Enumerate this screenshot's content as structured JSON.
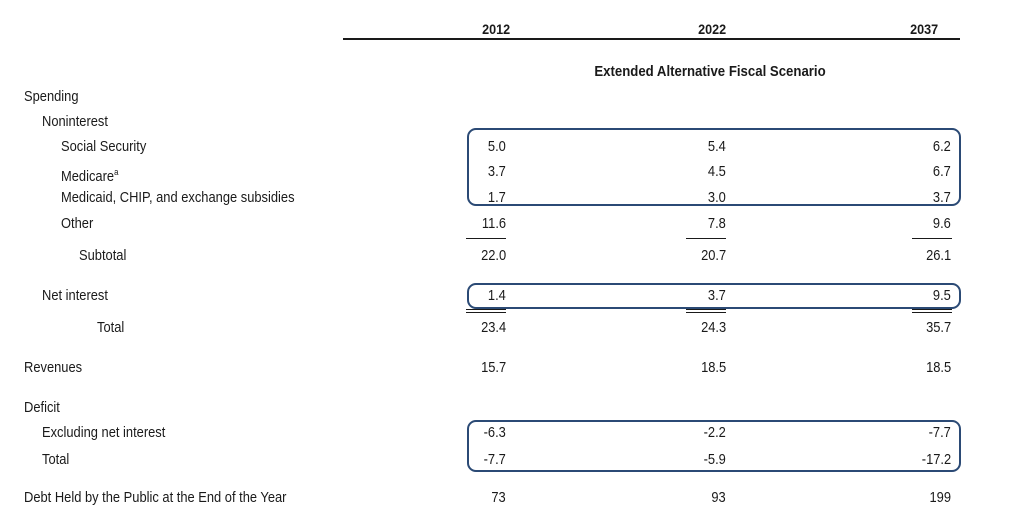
{
  "years": [
    "2012",
    "2022",
    "2037"
  ],
  "scenario_title": "Extended Alternative Fiscal Scenario",
  "rows": {
    "spending": {
      "label": "Spending"
    },
    "noninterest": {
      "label": "Noninterest"
    },
    "social_security": {
      "label": "Social Security",
      "values": [
        "5.0",
        "5.4",
        "6.2"
      ]
    },
    "medicare": {
      "label": "Medicare",
      "superscript": "a",
      "values": [
        "3.7",
        "4.5",
        "6.7"
      ]
    },
    "medicaid": {
      "label": "Medicaid, CHIP, and exchange subsidies",
      "values": [
        "1.7",
        "3.0",
        "3.7"
      ]
    },
    "other": {
      "label": "Other",
      "values": [
        "11.6",
        "7.8",
        "9.6"
      ]
    },
    "subtotal": {
      "label": "Subtotal",
      "values": [
        "22.0",
        "20.7",
        "26.1"
      ]
    },
    "net_interest": {
      "label": "Net interest",
      "values": [
        "1.4",
        "3.7",
        "9.5"
      ]
    },
    "total_spending": {
      "label": "Total",
      "values": [
        "23.4",
        "24.3",
        "35.7"
      ]
    },
    "revenues": {
      "label": "Revenues",
      "values": [
        "15.7",
        "18.5",
        "18.5"
      ]
    },
    "deficit": {
      "label": "Deficit"
    },
    "excl_net_interest": {
      "label": "Excluding net interest",
      "values": [
        "-6.3",
        "-2.2",
        "-7.7"
      ]
    },
    "total_deficit": {
      "label": "Total",
      "values": [
        "-7.7",
        "-5.9",
        "-17.2"
      ]
    },
    "debt": {
      "label": "Debt Held by the Public at the End of the Year",
      "values": [
        "73",
        "93",
        "199"
      ]
    }
  }
}
